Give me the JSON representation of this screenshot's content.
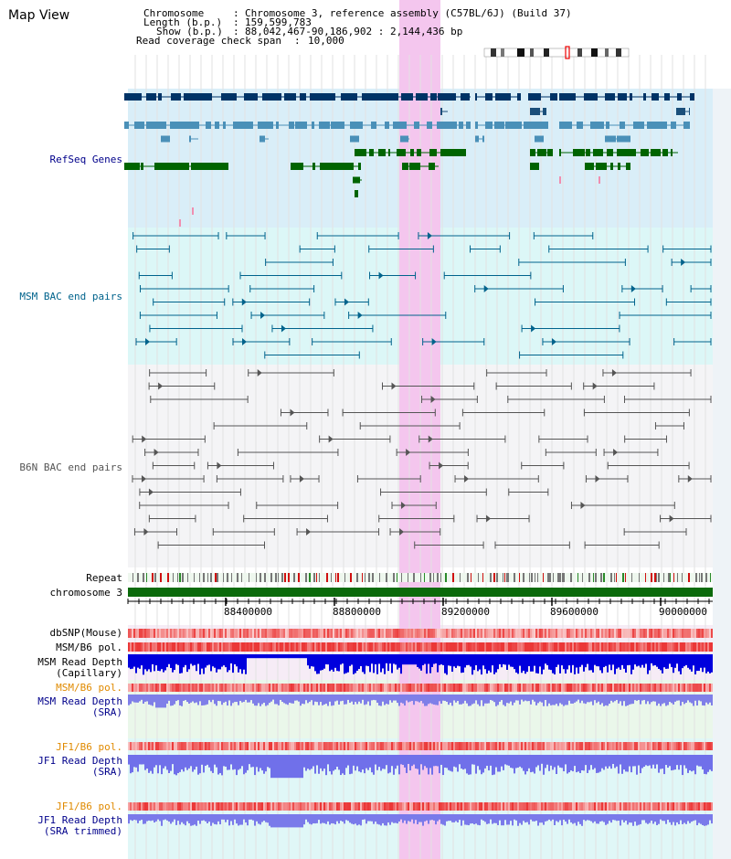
{
  "title": "Map View",
  "info": {
    "chromosome_label": "Chromosome",
    "chromosome_value": "Chromosome 3, reference assembly (C57BL/6J) (Build 37)",
    "length_label": "Length (b.p.)",
    "length_value": "159,599,783",
    "show_label": "Show (b.p.)",
    "show_value": "88,042,467-90,186,902 : 2,144,436 bp",
    "span_label": "Read coverage check span",
    "span_value": "10,000"
  },
  "tracks": {
    "refseq": "RefSeq Genes",
    "msm_bac": "MSM BAC end pairs",
    "b6n_bac": "B6N BAC end pairs",
    "repeat": "Repeat",
    "chromosome": "chromosome 3",
    "dbsnp": "dbSNP(Mouse)",
    "msm_b6_pol": "MSM/B6 pol.",
    "msm_depth_cap_1": "MSM Read Depth",
    "msm_depth_cap_2": "(Capillary)",
    "msm_b6_pol2": "MSM/B6 pol.",
    "msm_depth_sra_1": "MSM Read Depth",
    "msm_depth_sra_2": "(SRA)",
    "jf1_b6_pol": "JF1/B6 pol.",
    "jf1_depth_1": "JF1 Read Depth",
    "jf1_depth_2": "(SRA)",
    "jf1_b6_pol2": "JF1/B6 pol.",
    "jf1_trim_1": "JF1 Read Depth",
    "jf1_trim_2": "(SRA trimmed)"
  },
  "axis_ticks": [
    "88400000",
    "88800000",
    "89200000",
    "89600000",
    "90000000"
  ],
  "colors": {
    "refseq_dark": "#003366",
    "refseq_light": "#4a90b8",
    "refseq_green": "#006400",
    "msm_bac": "#00638c",
    "b6n_bac": "#555555",
    "highlight": "#f4c6ee",
    "depth_blue": "#0000dd",
    "depth_light_blue": "#6666ee",
    "pol_red": "#e83030"
  }
}
